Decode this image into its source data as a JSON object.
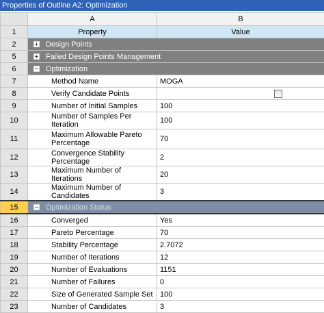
{
  "window": {
    "title": "Properties of Outline A2: Optimization"
  },
  "columns": {
    "a": "A",
    "b": "B"
  },
  "header": {
    "num": "1",
    "property": "Property",
    "value": "Value"
  },
  "groups": {
    "design_points": {
      "num": "2",
      "label": "Design Points",
      "toggle": "+"
    },
    "failed_management": {
      "num": "5",
      "label": "Failed Design Points Management",
      "toggle": "+"
    },
    "optimization": {
      "num": "6",
      "label": "Optimization",
      "toggle": "−"
    },
    "optimization_status": {
      "num": "15",
      "label": "Optimization Status",
      "toggle": "−"
    }
  },
  "optimization_rows": [
    {
      "num": "7",
      "property": "Method Name",
      "value": "MOGA"
    },
    {
      "num": "8",
      "property": "Verify Candidate Points",
      "value": "",
      "checked": false
    },
    {
      "num": "9",
      "property": "Number of Initial Samples",
      "value": "100"
    },
    {
      "num": "10",
      "property": "Number of Samples Per Iteration",
      "value": "100"
    },
    {
      "num": "11",
      "property": "Maximum Allowable Pareto Percentage",
      "value": "70"
    },
    {
      "num": "12",
      "property": "Convergence Stability Percentage",
      "value": "2"
    },
    {
      "num": "13",
      "property": "Maximum Number of Iterations",
      "value": "20"
    },
    {
      "num": "14",
      "property": "Maximum Number of Candidates",
      "value": "3"
    }
  ],
  "status_rows": [
    {
      "num": "16",
      "property": "Converged",
      "value": "Yes"
    },
    {
      "num": "17",
      "property": "Pareto Percentage",
      "value": "70"
    },
    {
      "num": "18",
      "property": "Stability Percentage",
      "value": "2.7072"
    },
    {
      "num": "19",
      "property": "Number of Iterations",
      "value": "12"
    },
    {
      "num": "20",
      "property": "Number of Evaluations",
      "value": "1151"
    },
    {
      "num": "21",
      "property": "Number of Failures",
      "value": "0"
    },
    {
      "num": "22",
      "property": "Size of Generated Sample Set",
      "value": "100"
    },
    {
      "num": "23",
      "property": "Number of Candidates",
      "value": "3"
    }
  ]
}
